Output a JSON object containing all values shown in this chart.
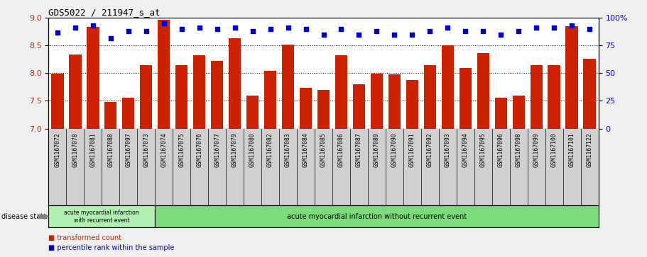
{
  "title": "GDS5022 / 211947_s_at",
  "samples": [
    "GSM1167072",
    "GSM1167078",
    "GSM1167081",
    "GSM1167088",
    "GSM1167097",
    "GSM1167073",
    "GSM1167074",
    "GSM1167075",
    "GSM1167076",
    "GSM1167077",
    "GSM1167079",
    "GSM1167080",
    "GSM1167082",
    "GSM1167083",
    "GSM1167084",
    "GSM1167085",
    "GSM1167086",
    "GSM1167087",
    "GSM1167089",
    "GSM1167090",
    "GSM1167091",
    "GSM1167092",
    "GSM1167093",
    "GSM1167094",
    "GSM1167095",
    "GSM1167096",
    "GSM1167098",
    "GSM1167099",
    "GSM1167100",
    "GSM1167101",
    "GSM1167122"
  ],
  "bar_values": [
    7.99,
    8.34,
    8.84,
    7.48,
    7.56,
    8.15,
    8.97,
    8.15,
    8.33,
    8.22,
    8.63,
    7.6,
    8.05,
    8.52,
    7.74,
    7.7,
    8.33,
    7.8,
    7.99,
    7.98,
    7.88,
    8.15,
    8.5,
    8.1,
    8.37,
    7.56,
    7.6,
    8.15,
    8.15,
    8.85,
    8.26
  ],
  "percentile_values": [
    87,
    91,
    93,
    82,
    88,
    88,
    95,
    90,
    91,
    90,
    91,
    88,
    90,
    91,
    90,
    85,
    90,
    85,
    88,
    85,
    85,
    88,
    91,
    88,
    88,
    85,
    88,
    91,
    91,
    93,
    90
  ],
  "group1_count": 6,
  "group1_label": "acute myocardial infarction\nwith recurrent event",
  "group2_label": "acute myocardial infarction without recurrent event",
  "bar_color": "#cc2200",
  "dot_color": "#0000cc",
  "ylim_left": [
    7.0,
    9.0
  ],
  "ylim_right": [
    0,
    100
  ],
  "yticks_left": [
    7.0,
    7.5,
    8.0,
    8.5,
    9.0
  ],
  "yticks_right": [
    0,
    25,
    50,
    75,
    100
  ],
  "ytick_labels_right": [
    "0",
    "25",
    "50",
    "75",
    "100%"
  ],
  "grid_values": [
    7.5,
    8.0,
    8.5
  ],
  "legend_items": [
    "transformed count",
    "percentile rank within the sample"
  ],
  "disease_state_label": "disease state",
  "fig_bg": "#f0f0f0",
  "plot_bg": "#ffffff",
  "xtick_bg": "#d0d0d0",
  "group_bg": "#7cdc7c",
  "group_border": "#006600"
}
